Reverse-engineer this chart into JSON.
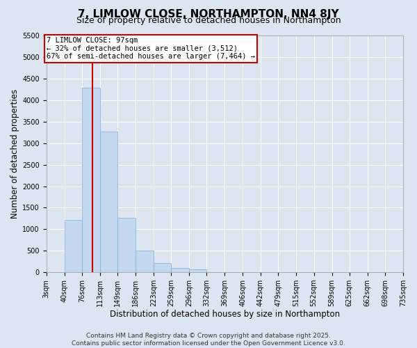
{
  "title": "7, LIMLOW CLOSE, NORTHAMPTON, NN4 8JY",
  "subtitle": "Size of property relative to detached houses in Northampton",
  "xlabel": "Distribution of detached houses by size in Northampton",
  "ylabel": "Number of detached properties",
  "bins": [
    "3sqm",
    "40sqm",
    "76sqm",
    "113sqm",
    "149sqm",
    "186sqm",
    "223sqm",
    "259sqm",
    "296sqm",
    "332sqm",
    "369sqm",
    "406sqm",
    "442sqm",
    "479sqm",
    "515sqm",
    "552sqm",
    "589sqm",
    "625sqm",
    "662sqm",
    "698sqm",
    "735sqm"
  ],
  "bin_edges": [
    3,
    40,
    76,
    113,
    149,
    186,
    223,
    259,
    296,
    332,
    369,
    406,
    442,
    479,
    515,
    552,
    589,
    625,
    662,
    698,
    735
  ],
  "bar_heights": [
    0,
    1220,
    4300,
    3280,
    1260,
    500,
    220,
    100,
    60,
    0,
    0,
    0,
    0,
    0,
    0,
    0,
    0,
    0,
    0,
    0
  ],
  "bar_color": "#c5d8f0",
  "bar_edge_color": "#7aadd4",
  "property_size": 97,
  "vline_color": "#cc0000",
  "annotation_text": "7 LIMLOW CLOSE: 97sqm\n← 32% of detached houses are smaller (3,512)\n67% of semi-detached houses are larger (7,464) →",
  "annotation_box_color": "#ffffff",
  "annotation_box_edge": "#cc0000",
  "ylim": [
    0,
    5500
  ],
  "yticks": [
    0,
    500,
    1000,
    1500,
    2000,
    2500,
    3000,
    3500,
    4000,
    4500,
    5000,
    5500
  ],
  "footer_line1": "Contains HM Land Registry data © Crown copyright and database right 2025.",
  "footer_line2": "Contains public sector information licensed under the Open Government Licence v3.0.",
  "bg_color": "#dde6f0",
  "plot_bg_color": "#dde6f0",
  "grid_color": "#ffffff",
  "title_fontsize": 11,
  "subtitle_fontsize": 9,
  "axis_label_fontsize": 8.5,
  "tick_fontsize": 7,
  "footer_fontsize": 6.5,
  "annotation_fontsize": 7.5
}
